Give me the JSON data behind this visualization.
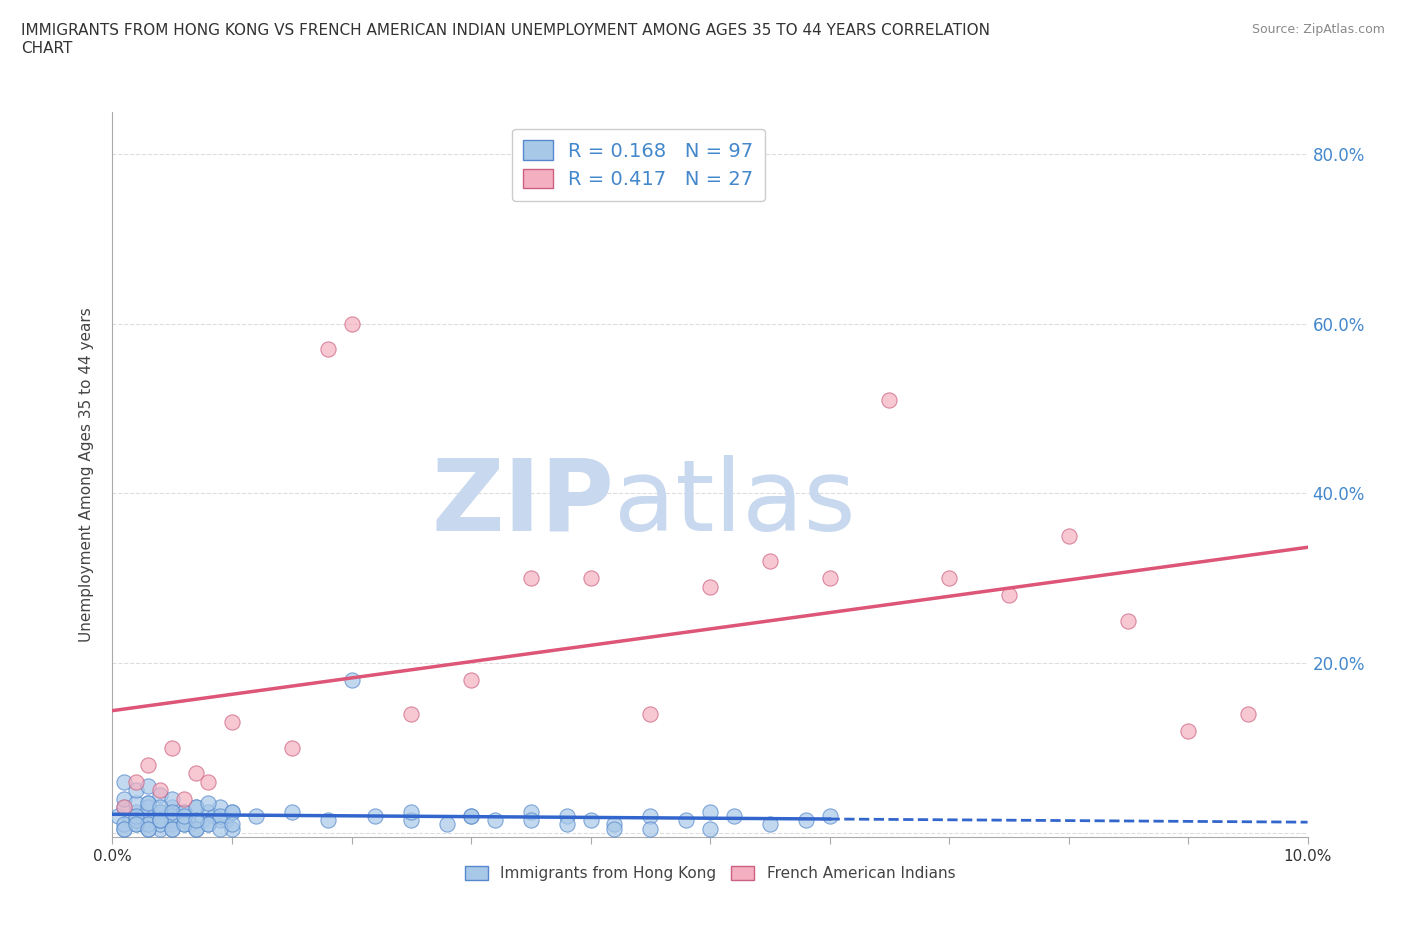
{
  "title": "IMMIGRANTS FROM HONG KONG VS FRENCH AMERICAN INDIAN UNEMPLOYMENT AMONG AGES 35 TO 44 YEARS CORRELATION\nCHART",
  "source": "Source: ZipAtlas.com",
  "ylabel": "Unemployment Among Ages 35 to 44 years",
  "xlim": [
    0.0,
    0.1
  ],
  "ylim": [
    -0.005,
    0.85
  ],
  "xtick_labels": [
    "0.0%",
    "",
    "",
    "",
    "",
    "",
    "",
    "",
    "",
    "",
    "10.0%"
  ],
  "xtick_vals": [
    0.0,
    0.01,
    0.02,
    0.03,
    0.04,
    0.05,
    0.06,
    0.07,
    0.08,
    0.09,
    0.1
  ],
  "ytick_labels": [
    "",
    "20.0%",
    "40.0%",
    "60.0%",
    "80.0%"
  ],
  "ytick_vals": [
    0.0,
    0.2,
    0.4,
    0.6,
    0.8
  ],
  "blue_color": "#a8c8e8",
  "pink_color": "#f4b0c0",
  "blue_edge_color": "#5588cc",
  "pink_edge_color": "#cc6080",
  "blue_line_color": "#3366cc",
  "pink_line_color": "#dd5577",
  "R_blue": 0.168,
  "N_blue": 97,
  "R_pink": 0.417,
  "N_pink": 27,
  "legend_label_blue": "Immigrants from Hong Kong",
  "legend_label_pink": "French American Indians",
  "watermark_zip": "ZIP",
  "watermark_atlas": "atlas",
  "watermark_color_zip": "#c8d8ee",
  "watermark_color_atlas": "#c8d8ee",
  "background_color": "#ffffff",
  "grid_color": "#dddddd",
  "blue_scatter_x": [
    0.0005,
    0.001,
    0.0015,
    0.002,
    0.0025,
    0.003,
    0.0035,
    0.004,
    0.0045,
    0.005,
    0.0055,
    0.006,
    0.0065,
    0.007,
    0.0075,
    0.008,
    0.0085,
    0.009,
    0.0095,
    0.01,
    0.001,
    0.002,
    0.003,
    0.004,
    0.005,
    0.006,
    0.007,
    0.008,
    0.009,
    0.01,
    0.001,
    0.002,
    0.003,
    0.004,
    0.005,
    0.006,
    0.007,
    0.008,
    0.009,
    0.01,
    0.001,
    0.002,
    0.003,
    0.004,
    0.005,
    0.002,
    0.003,
    0.004,
    0.005,
    0.006,
    0.012,
    0.015,
    0.018,
    0.02,
    0.022,
    0.025,
    0.028,
    0.03,
    0.032,
    0.035,
    0.038,
    0.04,
    0.042,
    0.045,
    0.048,
    0.05,
    0.052,
    0.055,
    0.058,
    0.06,
    0.001,
    0.002,
    0.003,
    0.004,
    0.005,
    0.006,
    0.007,
    0.008,
    0.009,
    0.01,
    0.001,
    0.002,
    0.003,
    0.004,
    0.005,
    0.003,
    0.004,
    0.005,
    0.006,
    0.007,
    0.025,
    0.03,
    0.035,
    0.038,
    0.042,
    0.045,
    0.05
  ],
  "blue_scatter_y": [
    0.02,
    0.03,
    0.015,
    0.025,
    0.01,
    0.035,
    0.02,
    0.025,
    0.015,
    0.03,
    0.02,
    0.025,
    0.01,
    0.03,
    0.015,
    0.025,
    0.02,
    0.03,
    0.015,
    0.025,
    0.005,
    0.01,
    0.015,
    0.005,
    0.01,
    0.015,
    0.005,
    0.01,
    0.015,
    0.005,
    0.04,
    0.035,
    0.03,
    0.025,
    0.02,
    0.025,
    0.03,
    0.035,
    0.02,
    0.025,
    0.01,
    0.015,
    0.005,
    0.01,
    0.015,
    0.02,
    0.01,
    0.015,
    0.005,
    0.01,
    0.02,
    0.025,
    0.015,
    0.18,
    0.02,
    0.015,
    0.01,
    0.02,
    0.015,
    0.025,
    0.02,
    0.015,
    0.01,
    0.02,
    0.015,
    0.025,
    0.02,
    0.01,
    0.015,
    0.02,
    0.005,
    0.01,
    0.005,
    0.015,
    0.005,
    0.01,
    0.005,
    0.01,
    0.005,
    0.01,
    0.06,
    0.05,
    0.055,
    0.045,
    0.04,
    0.035,
    0.03,
    0.025,
    0.02,
    0.015,
    0.025,
    0.02,
    0.015,
    0.01,
    0.005,
    0.005,
    0.005
  ],
  "pink_scatter_x": [
    0.001,
    0.002,
    0.003,
    0.004,
    0.005,
    0.006,
    0.007,
    0.008,
    0.01,
    0.015,
    0.018,
    0.02,
    0.025,
    0.03,
    0.035,
    0.04,
    0.045,
    0.05,
    0.055,
    0.06,
    0.065,
    0.07,
    0.075,
    0.08,
    0.085,
    0.09,
    0.095
  ],
  "pink_scatter_y": [
    0.03,
    0.06,
    0.08,
    0.05,
    0.1,
    0.04,
    0.07,
    0.06,
    0.13,
    0.1,
    0.57,
    0.6,
    0.14,
    0.18,
    0.3,
    0.3,
    0.14,
    0.29,
    0.32,
    0.3,
    0.51,
    0.3,
    0.28,
    0.35,
    0.25,
    0.12,
    0.14
  ]
}
